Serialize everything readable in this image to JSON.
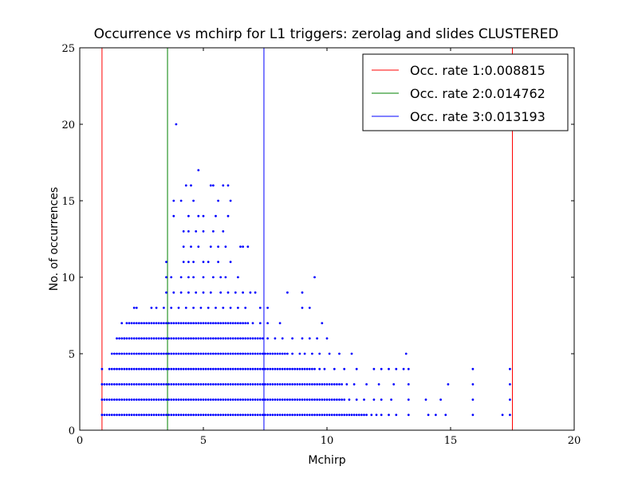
{
  "chart_data": {
    "type": "scatter",
    "title": "Occurrence vs mchirp for L1 triggers: zerolag and slides CLUSTERED",
    "xlabel": "Mchirp",
    "ylabel": "No. of occurrences",
    "xlim": [
      0,
      20
    ],
    "ylim": [
      0,
      25
    ],
    "x_ticks": [
      0,
      5,
      10,
      15,
      20
    ],
    "y_ticks": [
      0,
      5,
      10,
      15,
      20,
      25
    ],
    "grid": false,
    "legend_position": "top-right",
    "point_color": "#0000ff",
    "columns": [
      {
        "y": 1,
        "x_start": 0.9,
        "x_end": 11.6
      },
      {
        "y": 2,
        "x_start": 0.9,
        "x_end": 10.7
      },
      {
        "y": 3,
        "x_start": 0.9,
        "x_end": 10.6
      },
      {
        "y": 4,
        "x_start": 1.2,
        "x_end": 9.5
      },
      {
        "y": 5,
        "x_start": 1.3,
        "x_end": 8.4
      },
      {
        "y": 6,
        "x_start": 1.5,
        "x_end": 7.4
      },
      {
        "y": 7,
        "x_start": 1.9,
        "x_end": 6.8
      }
    ],
    "scatter_points": [
      [
        0.9,
        1
      ],
      [
        0.9,
        2
      ],
      [
        0.9,
        3
      ],
      [
        0.9,
        4
      ],
      [
        11.8,
        1
      ],
      [
        12.0,
        1
      ],
      [
        12.2,
        1
      ],
      [
        12.5,
        1
      ],
      [
        12.8,
        1
      ],
      [
        13.3,
        1
      ],
      [
        14.1,
        1
      ],
      [
        14.4,
        1
      ],
      [
        14.8,
        1
      ],
      [
        15.9,
        1
      ],
      [
        17.1,
        1
      ],
      [
        17.4,
        1
      ],
      [
        10.9,
        2
      ],
      [
        11.2,
        2
      ],
      [
        11.5,
        2
      ],
      [
        11.9,
        2
      ],
      [
        12.2,
        2
      ],
      [
        12.6,
        2
      ],
      [
        13.3,
        2
      ],
      [
        14.0,
        2
      ],
      [
        14.6,
        2
      ],
      [
        15.9,
        2
      ],
      [
        17.4,
        2
      ],
      [
        10.8,
        3
      ],
      [
        11.1,
        3
      ],
      [
        11.6,
        3
      ],
      [
        12.1,
        3
      ],
      [
        12.7,
        3
      ],
      [
        13.3,
        3
      ],
      [
        14.9,
        3
      ],
      [
        15.9,
        3
      ],
      [
        17.4,
        3
      ],
      [
        9.7,
        4
      ],
      [
        9.9,
        4
      ],
      [
        10.3,
        4
      ],
      [
        10.7,
        4
      ],
      [
        11.2,
        4
      ],
      [
        11.9,
        4
      ],
      [
        12.2,
        4
      ],
      [
        12.5,
        4
      ],
      [
        12.8,
        4
      ],
      [
        13.1,
        4
      ],
      [
        13.3,
        4
      ],
      [
        15.9,
        4
      ],
      [
        17.4,
        4
      ],
      [
        8.6,
        5
      ],
      [
        8.9,
        5
      ],
      [
        9.1,
        5
      ],
      [
        9.4,
        5
      ],
      [
        9.7,
        5
      ],
      [
        10.1,
        5
      ],
      [
        10.5,
        5
      ],
      [
        11.0,
        5
      ],
      [
        13.2,
        5
      ],
      [
        7.6,
        6
      ],
      [
        7.9,
        6
      ],
      [
        8.2,
        6
      ],
      [
        8.6,
        6
      ],
      [
        9.0,
        6
      ],
      [
        9.3,
        6
      ],
      [
        9.6,
        6
      ],
      [
        10.0,
        6
      ],
      [
        7.0,
        7
      ],
      [
        7.3,
        7
      ],
      [
        7.6,
        7
      ],
      [
        8.1,
        7
      ],
      [
        9.8,
        7
      ],
      [
        1.8,
        6
      ],
      [
        1.7,
        7
      ],
      [
        2.2,
        8
      ],
      [
        2.3,
        8
      ],
      [
        2.9,
        8
      ],
      [
        3.1,
        8
      ],
      [
        3.4,
        8
      ],
      [
        3.7,
        8
      ],
      [
        4.0,
        8
      ],
      [
        4.3,
        8
      ],
      [
        4.6,
        8
      ],
      [
        4.9,
        8
      ],
      [
        5.2,
        8
      ],
      [
        5.5,
        8
      ],
      [
        5.8,
        8
      ],
      [
        6.1,
        8
      ],
      [
        6.4,
        8
      ],
      [
        6.7,
        8
      ],
      [
        7.3,
        8
      ],
      [
        7.6,
        8
      ],
      [
        9.0,
        8
      ],
      [
        9.3,
        8
      ],
      [
        3.5,
        9
      ],
      [
        3.8,
        9
      ],
      [
        4.1,
        9
      ],
      [
        4.4,
        9
      ],
      [
        4.7,
        9
      ],
      [
        5.0,
        9
      ],
      [
        5.3,
        9
      ],
      [
        5.7,
        9
      ],
      [
        6.0,
        9
      ],
      [
        6.3,
        9
      ],
      [
        6.6,
        9
      ],
      [
        6.9,
        9
      ],
      [
        7.1,
        9
      ],
      [
        8.4,
        9
      ],
      [
        9.0,
        9
      ],
      [
        3.5,
        10
      ],
      [
        3.7,
        10
      ],
      [
        4.1,
        10
      ],
      [
        4.4,
        10
      ],
      [
        4.6,
        10
      ],
      [
        5.0,
        10
      ],
      [
        5.4,
        10
      ],
      [
        5.7,
        10
      ],
      [
        5.9,
        10
      ],
      [
        6.4,
        10
      ],
      [
        9.5,
        10
      ],
      [
        3.5,
        11
      ],
      [
        4.2,
        11
      ],
      [
        4.4,
        11
      ],
      [
        4.6,
        11
      ],
      [
        5.0,
        11
      ],
      [
        5.2,
        11
      ],
      [
        5.6,
        11
      ],
      [
        6.1,
        11
      ],
      [
        4.2,
        12
      ],
      [
        4.5,
        12
      ],
      [
        4.8,
        12
      ],
      [
        5.3,
        12
      ],
      [
        5.6,
        12
      ],
      [
        5.9,
        12
      ],
      [
        6.5,
        12
      ],
      [
        6.6,
        12
      ],
      [
        6.8,
        12
      ],
      [
        4.2,
        13
      ],
      [
        4.4,
        13
      ],
      [
        4.7,
        13
      ],
      [
        5.0,
        13
      ],
      [
        5.4,
        13
      ],
      [
        5.8,
        13
      ],
      [
        3.8,
        14
      ],
      [
        4.4,
        14
      ],
      [
        4.8,
        14
      ],
      [
        5.0,
        14
      ],
      [
        5.5,
        14
      ],
      [
        6.0,
        14
      ],
      [
        3.8,
        15
      ],
      [
        4.1,
        15
      ],
      [
        4.6,
        15
      ],
      [
        5.6,
        15
      ],
      [
        6.1,
        15
      ],
      [
        4.3,
        16
      ],
      [
        4.5,
        16
      ],
      [
        5.3,
        16
      ],
      [
        5.4,
        16
      ],
      [
        5.8,
        16
      ],
      [
        6.0,
        16
      ],
      [
        4.8,
        17
      ],
      [
        3.9,
        20
      ]
    ],
    "vertical_lines": [
      {
        "x": 0.9,
        "color": "#ff0000",
        "series": 1
      },
      {
        "x": 3.55,
        "color": "#008000",
        "series": 2
      },
      {
        "x": 7.45,
        "color": "#0000ff",
        "series": 3
      },
      {
        "x": 17.5,
        "color": "#ff0000",
        "series": 1
      }
    ],
    "series": [
      {
        "name": "Occ. rate 1:0.008815",
        "color": "#ff0000"
      },
      {
        "name": "Occ. rate 2:0.014762",
        "color": "#008000"
      },
      {
        "name": "Occ. rate 3:0.013193",
        "color": "#0000ff"
      }
    ]
  }
}
